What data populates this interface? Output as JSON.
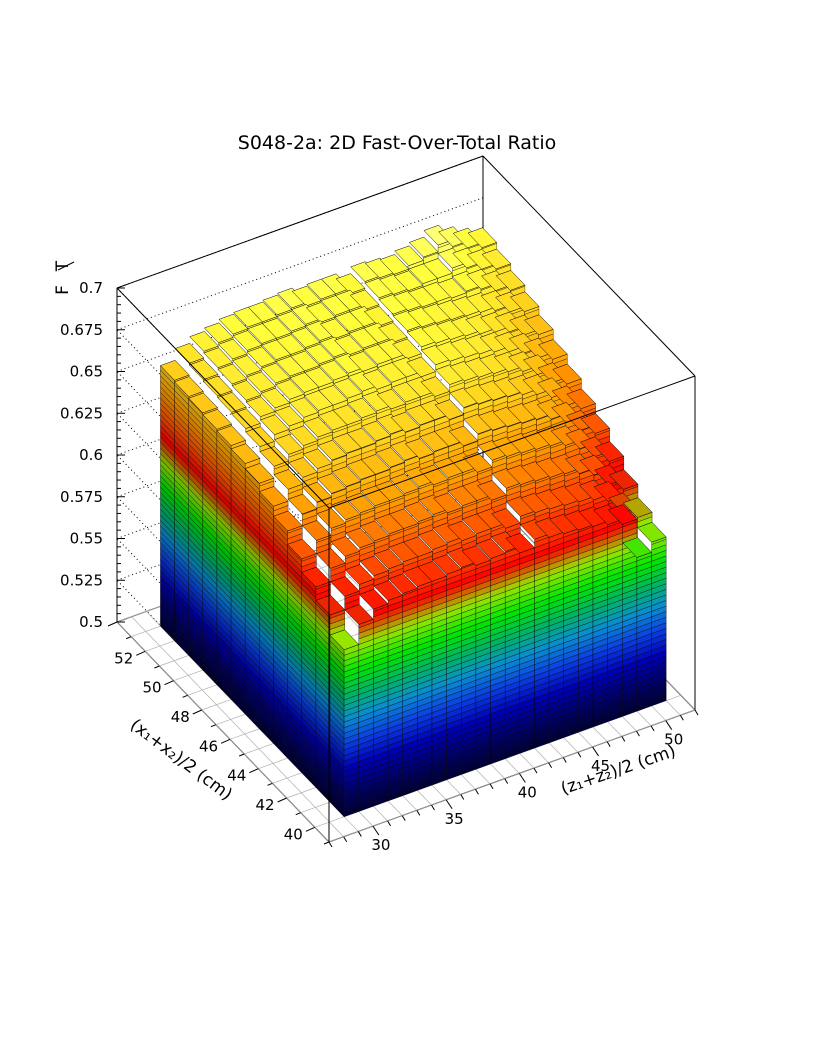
{
  "chart_data": {
    "type": "lego3d",
    "title": "S048-2a: 2D Fast-Over-Total Ratio",
    "zlabel_num": "F",
    "zlabel_den": "T",
    "xlabel": "(z₁+z₂)/2 (cm)",
    "ylabel": "(x₁+x₂)/2 (cm)",
    "x_range": [
      27,
      52
    ],
    "y_range": [
      39,
      54
    ],
    "zlim": [
      0.5,
      0.7
    ],
    "x_ticks": [
      "30",
      "35",
      "40",
      "45",
      "50"
    ],
    "y_ticks": [
      "40",
      "42",
      "44",
      "46",
      "48",
      "50",
      "52"
    ],
    "z_ticks": [
      "0.5",
      "0.525",
      "0.55",
      "0.575",
      "0.6",
      "0.625",
      "0.65",
      "0.675",
      "0.7"
    ],
    "x_bins": [
      29,
      30,
      31,
      32,
      33,
      34,
      35,
      36,
      37,
      38,
      39,
      40,
      41,
      42,
      43,
      44,
      45,
      46,
      47,
      48,
      49,
      50
    ],
    "y_bins": [
      40,
      41,
      42,
      43,
      44,
      45,
      46,
      47,
      48,
      49,
      50,
      51,
      52
    ],
    "values": [
      [
        0.6,
        0.612,
        0.618,
        0.62,
        0.621,
        0.622,
        0.622,
        0.623,
        0.624,
        0.622,
        0.623,
        0.624,
        0.62,
        0.625,
        0.623,
        0.622,
        0.621,
        0.62,
        0.618,
        0.615,
        0.592,
        0.598
      ],
      [
        0.612,
        0.62,
        0.624,
        0.626,
        0.627,
        0.628,
        0.628,
        0.629,
        0.63,
        0.628,
        0.629,
        0.629,
        0.626,
        0.63,
        0.629,
        0.628,
        0.627,
        0.626,
        0.624,
        0.62,
        0.61,
        0.604
      ],
      [
        0.62,
        0.628,
        0.632,
        0.634,
        0.635,
        0.636,
        0.636,
        0.637,
        0.638,
        0.636,
        0.637,
        0.637,
        0.634,
        0.638,
        0.637,
        0.636,
        0.635,
        0.634,
        0.631,
        0.627,
        0.618,
        0.612
      ],
      [
        0.628,
        0.636,
        0.64,
        0.642,
        0.643,
        0.644,
        0.644,
        0.645,
        0.646,
        0.644,
        0.645,
        0.645,
        0.642,
        0.646,
        0.645,
        0.644,
        0.643,
        0.642,
        0.639,
        0.634,
        0.626,
        0.62
      ],
      [
        0.636,
        0.643,
        0.647,
        0.649,
        0.65,
        0.651,
        0.651,
        0.652,
        0.653,
        0.651,
        0.652,
        0.652,
        0.649,
        0.653,
        0.652,
        0.651,
        0.65,
        0.649,
        0.646,
        0.641,
        0.633,
        0.628
      ],
      [
        0.642,
        0.649,
        0.653,
        0.655,
        0.657,
        0.658,
        0.658,
        0.659,
        0.66,
        0.658,
        0.659,
        0.659,
        0.656,
        0.66,
        0.659,
        0.658,
        0.657,
        0.655,
        0.652,
        0.647,
        0.639,
        0.634
      ],
      [
        0.647,
        0.654,
        0.658,
        0.66,
        0.662,
        0.663,
        0.663,
        0.664,
        0.665,
        0.663,
        0.664,
        0.664,
        0.661,
        0.665,
        0.664,
        0.663,
        0.662,
        0.66,
        0.657,
        0.652,
        0.644,
        0.64
      ],
      [
        0.65,
        0.657,
        0.661,
        0.663,
        0.665,
        0.666,
        0.666,
        0.667,
        0.668,
        0.666,
        0.667,
        0.667,
        0.664,
        0.668,
        0.667,
        0.666,
        0.665,
        0.663,
        0.66,
        0.656,
        0.65,
        0.646
      ],
      [
        0.652,
        0.659,
        0.663,
        0.665,
        0.667,
        0.668,
        0.668,
        0.669,
        0.67,
        0.668,
        0.669,
        0.669,
        0.666,
        0.67,
        0.669,
        0.668,
        0.667,
        0.665,
        0.663,
        0.66,
        0.655,
        0.652
      ],
      [
        0.653,
        0.66,
        0.664,
        0.666,
        0.668,
        0.669,
        0.669,
        0.67,
        0.671,
        0.669,
        0.67,
        0.67,
        0.667,
        0.671,
        0.67,
        0.669,
        0.668,
        0.667,
        0.666,
        0.664,
        0.66,
        0.657
      ],
      [
        0.654,
        0.661,
        0.665,
        0.667,
        0.669,
        0.67,
        0.67,
        0.671,
        0.672,
        0.67,
        0.671,
        0.671,
        0.668,
        0.672,
        0.671,
        0.67,
        0.67,
        0.669,
        0.67,
        0.668,
        0.664,
        0.661
      ],
      [
        0.655,
        0.662,
        0.666,
        0.668,
        0.67,
        0.671,
        0.671,
        0.672,
        0.673,
        0.671,
        0.672,
        0.672,
        0.669,
        0.673,
        0.672,
        0.671,
        0.672,
        0.672,
        0.675,
        0.672,
        0.668,
        0.665
      ],
      [
        0.656,
        0.663,
        0.667,
        0.669,
        0.671,
        0.672,
        0.672,
        0.673,
        0.674,
        0.672,
        0.673,
        0.673,
        0.67,
        0.674,
        0.673,
        0.672,
        0.674,
        0.676,
        0.68,
        0.676,
        0.672,
        0.669
      ]
    ],
    "grid": true,
    "colors": {
      "palette": [
        "#000033",
        "#00006a",
        "#0000b4",
        "#0a3ce0",
        "#0a8cd2",
        "#00b464",
        "#00e600",
        "#96e600",
        "#ff0000",
        "#ff5a00",
        "#ffa000",
        "#ffd21e",
        "#ffff3c",
        "#ffff9e",
        "#ffffff"
      ]
    }
  }
}
